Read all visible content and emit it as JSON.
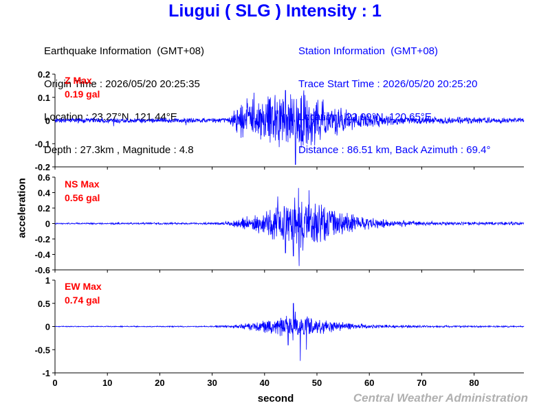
{
  "title": "Liugui ( SLG ) Intensity : 1",
  "earthquake_info": [
    "Earthquake Information  (GMT+08)",
    "Origin Time : 2026/05/20 20:25:35",
    "Location : 23.27°N, 121.44°E",
    "Depth : 27.3km , Magnitude : 4.8"
  ],
  "station_info": [
    "Station Information  (GMT+08)",
    "Trace Start Time : 2026/05/20 20:25:20",
    "Location : 22.99°N, 120.65°E",
    "Distance : 86.51 km, Back Azimuth : 69.4°"
  ],
  "credit": "Central Weather Administration",
  "colors": {
    "trace": "#0000ff",
    "max_label": "#ff0000",
    "title": "#0000ff",
    "credit": "#b0b0b0"
  },
  "chart_data": {
    "type": "line",
    "xlabel": "second",
    "ylabel": "acceleration",
    "xlim": [
      0,
      89.5
    ],
    "xticks": [
      0,
      10,
      20,
      30,
      40,
      50,
      60,
      70,
      80
    ],
    "grid": false,
    "panels": [
      {
        "component": "Z",
        "max_title": "Z Max",
        "max_value": "0.19 gal",
        "ylim": [
          -0.2,
          0.2
        ],
        "yticks": [
          -0.2,
          -0.1,
          0,
          0.1,
          0.2
        ],
        "envelope": [
          [
            0,
            0.012
          ],
          [
            10,
            0.014
          ],
          [
            20,
            0.012
          ],
          [
            33,
            0.014
          ],
          [
            34,
            0.06
          ],
          [
            36,
            0.1
          ],
          [
            40,
            0.12
          ],
          [
            44,
            0.13
          ],
          [
            47,
            0.15
          ],
          [
            52,
            0.09
          ],
          [
            58,
            0.04
          ],
          [
            65,
            0.022
          ],
          [
            80,
            0.016
          ],
          [
            89.5,
            0.014
          ]
        ],
        "peaks": [
          [
            11.2,
            -0.025
          ],
          [
            25,
            -0.02
          ],
          [
            44,
            0.13
          ],
          [
            45.9,
            0.16
          ],
          [
            45.9,
            -0.19
          ],
          [
            47.5,
            0.13
          ],
          [
            38,
            0.12
          ],
          [
            42,
            0.11
          ]
        ]
      },
      {
        "component": "NS",
        "max_title": "NS Max",
        "max_value": "0.56 gal",
        "ylim": [
          -0.6,
          0.6
        ],
        "yticks": [
          -0.6,
          -0.4,
          -0.2,
          0,
          0.2,
          0.4,
          0.6
        ],
        "envelope": [
          [
            0,
            0.01
          ],
          [
            30,
            0.015
          ],
          [
            33,
            0.03
          ],
          [
            37,
            0.1
          ],
          [
            42,
            0.25
          ],
          [
            46,
            0.4
          ],
          [
            50,
            0.3
          ],
          [
            54,
            0.2
          ],
          [
            60,
            0.08
          ],
          [
            70,
            0.03
          ],
          [
            89.5,
            0.02
          ]
        ],
        "peaks": [
          [
            46.5,
            0.46
          ],
          [
            46.6,
            -0.55
          ],
          [
            45.5,
            -0.42
          ],
          [
            48.5,
            0.43
          ],
          [
            42.5,
            0.35
          ],
          [
            44,
            -0.38
          ]
        ]
      },
      {
        "component": "EW",
        "max_title": "EW Max",
        "max_value": "0.74 gal",
        "ylim": [
          -1,
          1
        ],
        "yticks": [
          -1,
          -0.5,
          0,
          0.5,
          1
        ],
        "envelope": [
          [
            0,
            0.01
          ],
          [
            30,
            0.015
          ],
          [
            35,
            0.05
          ],
          [
            40,
            0.15
          ],
          [
            44,
            0.3
          ],
          [
            46,
            0.38
          ],
          [
            50,
            0.2
          ],
          [
            55,
            0.1
          ],
          [
            60,
            0.05
          ],
          [
            70,
            0.025
          ],
          [
            89.5,
            0.02
          ]
        ],
        "peaks": [
          [
            46.8,
            0.72
          ],
          [
            46.8,
            -0.74
          ],
          [
            45.5,
            0.5
          ],
          [
            48,
            -0.5
          ],
          [
            44.5,
            -0.4
          ]
        ]
      }
    ]
  }
}
